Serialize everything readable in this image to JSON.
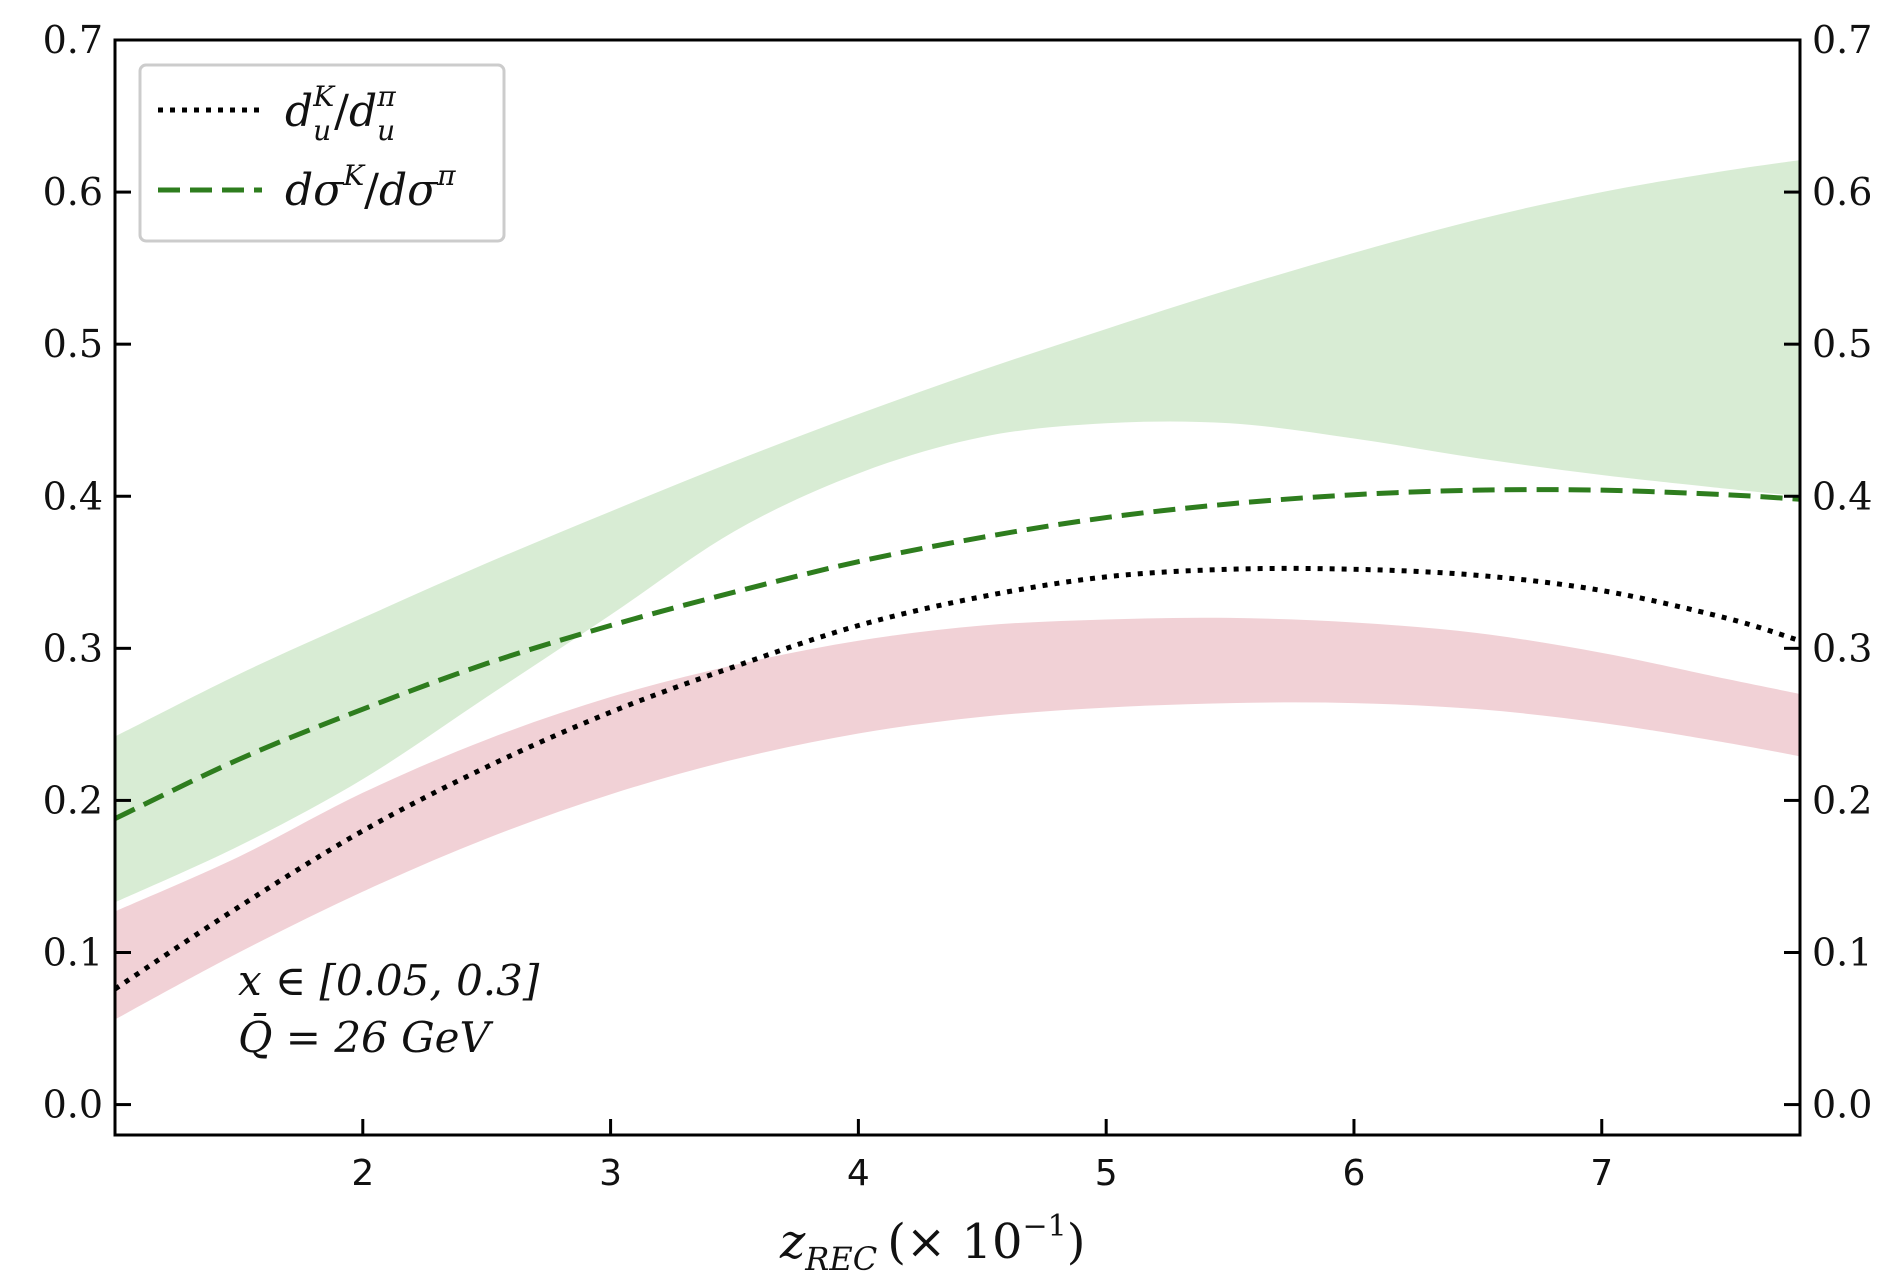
{
  "chart_data": {
    "type": "line",
    "title": "",
    "xlabel": "z_REC (× 10^-1)",
    "xlabel_parts": {
      "var": "z",
      "sub": "REC",
      "scale": "(× 10",
      "exp": "−1",
      "close": ")"
    },
    "ylabel": "",
    "xlim": [
      1.0,
      7.8
    ],
    "ylim": [
      -0.02,
      0.7
    ],
    "xticks": [
      2,
      3,
      4,
      5,
      6,
      7
    ],
    "xtick_labels": [
      "2",
      "3",
      "4",
      "5",
      "6",
      "7"
    ],
    "yticks": [
      0.0,
      0.1,
      0.2,
      0.3,
      0.4,
      0.5,
      0.6,
      0.7
    ],
    "ytick_labels": [
      "0.0",
      "0.1",
      "0.2",
      "0.3",
      "0.4",
      "0.5",
      "0.6",
      "0.7"
    ],
    "legend_position": "top-left",
    "x": [
      1.0,
      1.5,
      2.0,
      2.5,
      3.0,
      3.5,
      4.0,
      4.5,
      5.0,
      5.5,
      6.0,
      6.5,
      7.0,
      7.5,
      7.8
    ],
    "series": [
      {
        "name": "d_u^K / d_u^π",
        "legend": {
          "a": "d",
          "sub1": "u",
          "sup1": "K",
          "slash": "/",
          "b": "d",
          "sub2": "u",
          "sup2": "π"
        },
        "style": "dotted",
        "color": "#000000",
        "values": [
          0.076,
          0.13,
          0.18,
          0.222,
          0.258,
          0.288,
          0.315,
          0.334,
          0.347,
          0.352,
          0.352,
          0.348,
          0.338,
          0.32,
          0.305
        ],
        "band": {
          "color": "#e3a3ae",
          "opacity": 0.5,
          "lower": [
            0.056,
            0.1,
            0.14,
            0.175,
            0.204,
            0.227,
            0.244,
            0.255,
            0.261,
            0.264,
            0.264,
            0.26,
            0.251,
            0.238,
            0.229
          ],
          "upper": [
            0.127,
            0.163,
            0.205,
            0.24,
            0.268,
            0.289,
            0.305,
            0.315,
            0.319,
            0.32,
            0.317,
            0.31,
            0.297,
            0.28,
            0.27
          ]
        }
      },
      {
        "name": "dσ^K / dσ^π",
        "legend": {
          "a": "dσ",
          "sup1": "K",
          "slash": "/",
          "b": "dσ",
          "sup2": "π"
        },
        "style": "dashed",
        "color": "#2e7d1e",
        "values": [
          0.188,
          0.227,
          0.26,
          0.29,
          0.315,
          0.337,
          0.357,
          0.373,
          0.386,
          0.395,
          0.401,
          0.404,
          0.404,
          0.401,
          0.398
        ],
        "band": {
          "color": "#a8d5a0",
          "opacity": 0.45,
          "lower": [
            0.133,
            0.17,
            0.214,
            0.268,
            0.322,
            0.377,
            0.415,
            0.439,
            0.448,
            0.448,
            0.438,
            0.425,
            0.414,
            0.405,
            0.4
          ],
          "upper": [
            0.242,
            0.283,
            0.32,
            0.356,
            0.39,
            0.423,
            0.454,
            0.483,
            0.51,
            0.536,
            0.56,
            0.582,
            0.6,
            0.614,
            0.621
          ]
        }
      }
    ],
    "annotations": [
      {
        "id": "x-range",
        "text": "x ∈ [0.05, 0.3]"
      },
      {
        "id": "q-bar",
        "text": "Q̄ = 26 GeV"
      }
    ]
  }
}
